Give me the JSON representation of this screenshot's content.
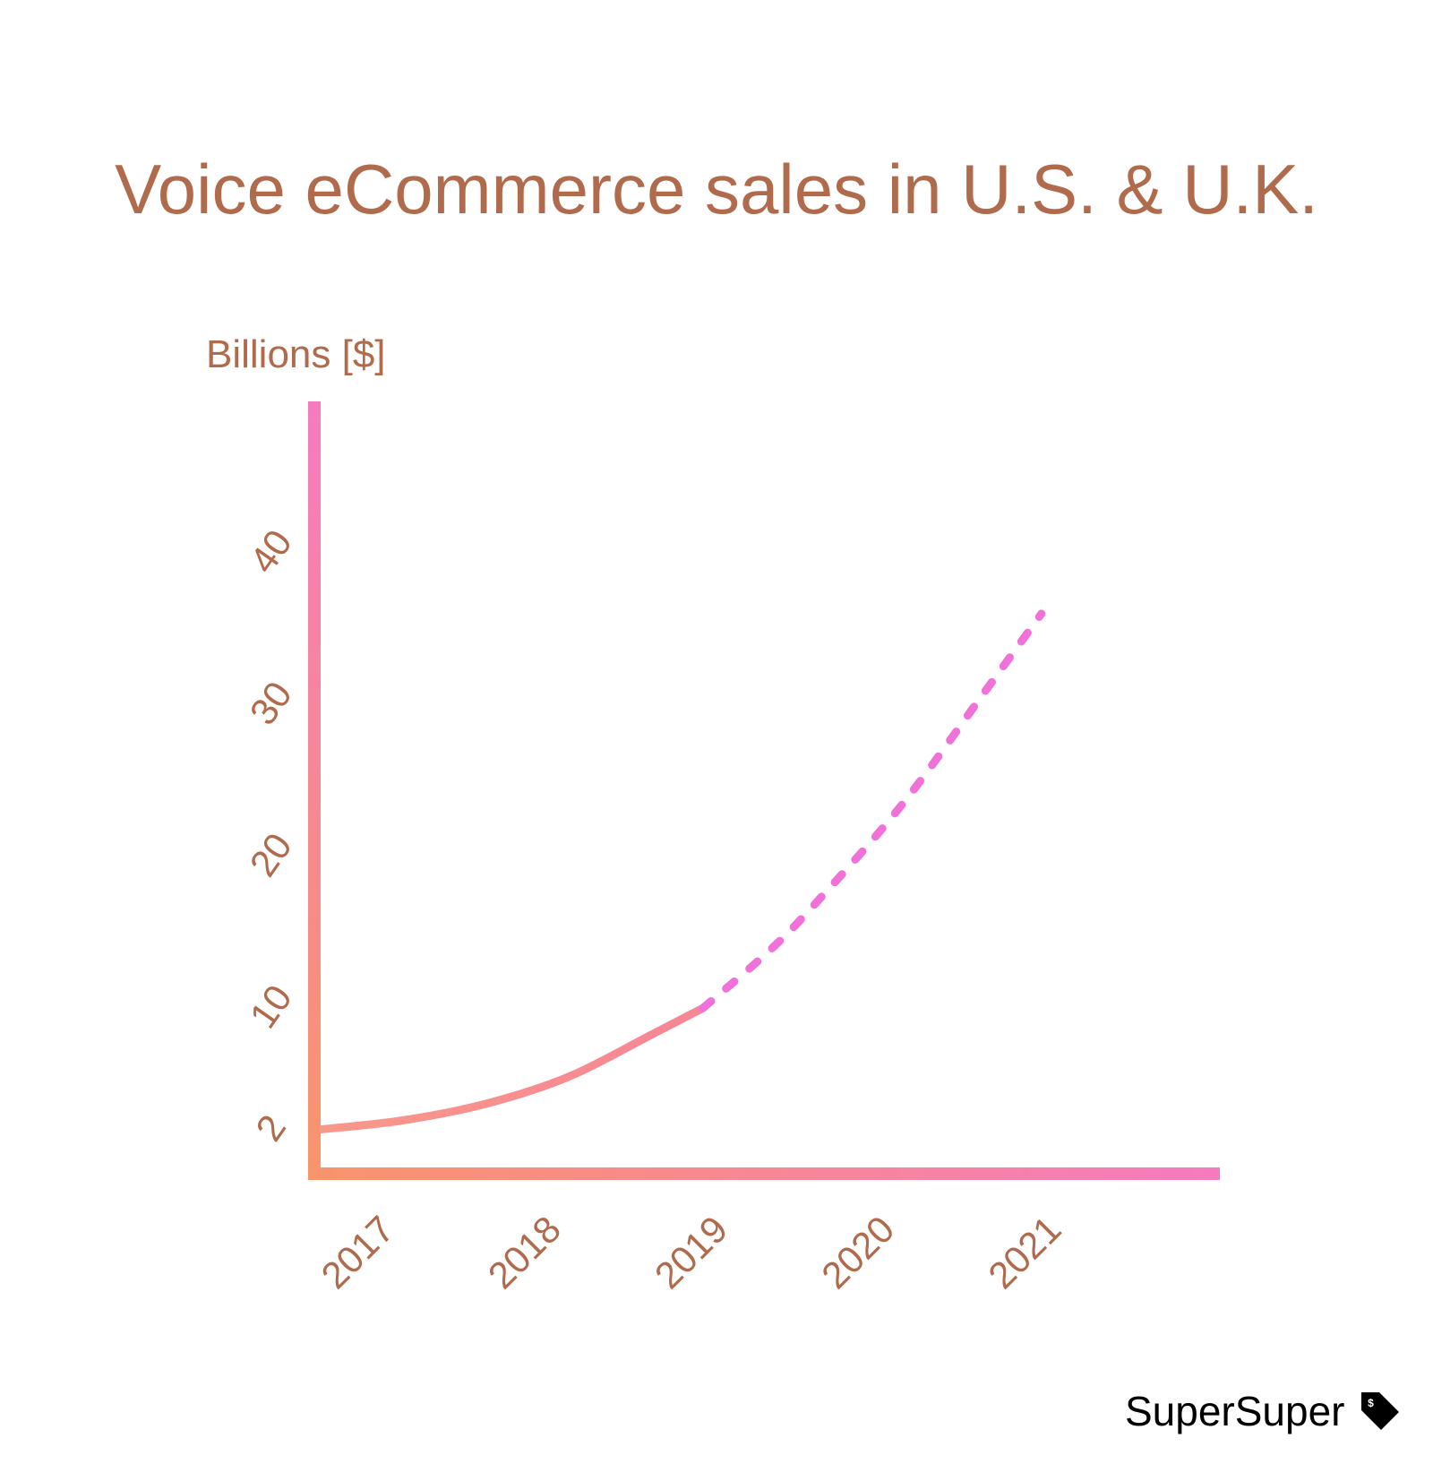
{
  "chart_data": {
    "type": "line",
    "title": "Voice eCommerce sales in U.S. & U.K.",
    "ylabel": "Billions [$]",
    "xlabel": "",
    "x_ticks": [
      2017,
      2018,
      2019,
      2020,
      2021
    ],
    "y_ticks": [
      2,
      10,
      20,
      30,
      40
    ],
    "xlim": [
      2016.97,
      2022.4
    ],
    "ylim": [
      -0.5,
      50
    ],
    "grid": false,
    "series": [
      {
        "style": "solid",
        "points": [
          [
            2017,
            2.0
          ],
          [
            2017.5,
            2.6
          ],
          [
            2018,
            3.7
          ],
          [
            2018.5,
            5.5
          ],
          [
            2019,
            8.3
          ],
          [
            2019.3,
            10.0
          ]
        ]
      },
      {
        "style": "dashed",
        "points": [
          [
            2019.3,
            10.0
          ],
          [
            2019.7,
            13.8
          ],
          [
            2020,
            17.2
          ],
          [
            2020.5,
            23.5
          ],
          [
            2021,
            31.0
          ],
          [
            2021.33,
            36.0
          ]
        ]
      }
    ]
  },
  "colors": {
    "text": "#b06a4c",
    "axis_start": "#f8956b",
    "axis_end": "#f57bbf",
    "dashed_line": "#f072d8"
  },
  "branding": {
    "name": "SuperSuper",
    "icon": "price-tag-icon",
    "icon_glyph": "$"
  }
}
